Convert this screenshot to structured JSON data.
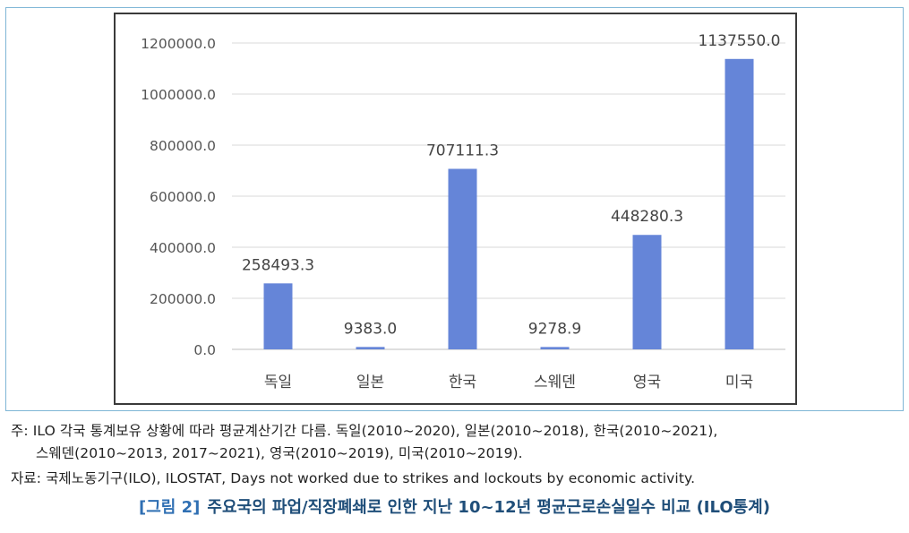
{
  "chart_data": {
    "type": "bar",
    "categories": [
      "독일",
      "일본",
      "한국",
      "스웨덴",
      "영국",
      "미국"
    ],
    "values": [
      258493.3,
      9383.0,
      707111.3,
      9278.9,
      448280.3,
      1137550.0
    ],
    "data_labels": [
      "258493.3",
      "9383.0",
      "707111.3",
      "9278.9",
      "448280.3",
      "1137550.0"
    ],
    "yticks": [
      "0.0",
      "200000.0",
      "400000.0",
      "600000.0",
      "800000.0",
      "1000000.0",
      "1200000.0"
    ],
    "ylim": [
      0,
      1200000
    ],
    "grid": true,
    "bar_color": "#6585d8",
    "title": "",
    "xlabel": "",
    "ylabel": ""
  },
  "notes": {
    "line1": "주: ILO 각국 통계보유 상황에 따라 평균계산기간 다름. 독일(2010~2020), 일본(2010~2018), 한국(2010~2021),",
    "line2": "스웨덴(2010~2013, 2017~2021), 영국(2010~2019), 미국(2010~2019).",
    "source": "자료: 국제노동기구(ILO), ILOSTAT, Days not worked due to strikes and lockouts by economic activity."
  },
  "caption": {
    "label": "[그림 2]",
    "text": "주요국의 파업/직장폐쇄로 인한 지난 10~12년 평균근로손실일수 비교 (ILO통계)"
  }
}
